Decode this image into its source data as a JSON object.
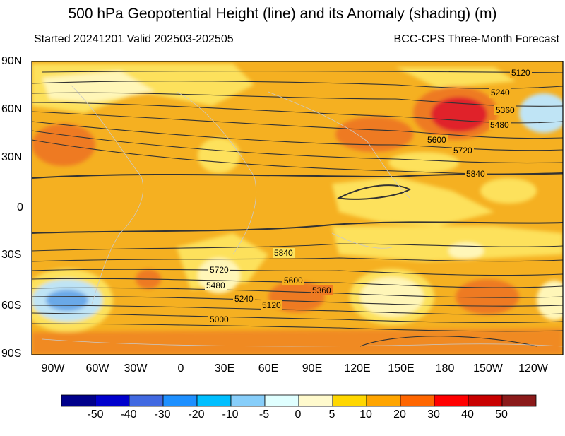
{
  "title": "500 hPa Geopotential Height (line) and its Anomaly (shading) (m)",
  "subtitle_left": "Started 20241201  Valid 202503-202505",
  "subtitle_right": "BCC-CPS Three-Month Forecast",
  "lat_labels": [
    "90N",
    "60N",
    "30N",
    "0",
    "30S",
    "60S",
    "90S"
  ],
  "lon_labels": [
    "90W",
    "60W",
    "30W",
    "0",
    "30E",
    "60E",
    "90E",
    "120E",
    "150E",
    "180",
    "150W",
    "120W"
  ],
  "contour_labels": [
    "5120",
    "5240",
    "5360",
    "5480",
    "5600",
    "5720",
    "5840",
    "5840",
    "5720",
    "5480",
    "5600",
    "5360",
    "5240",
    "5120",
    "5000"
  ],
  "colorbar": {
    "labels": [
      "-50",
      "-40",
      "-30",
      "-20",
      "-10",
      "-5",
      "0",
      "5",
      "10",
      "20",
      "30",
      "40",
      "50"
    ],
    "colors": [
      "#00008b",
      "#0000cd",
      "#4169e1",
      "#1e90ff",
      "#00bfff",
      "#87cefa",
      "#e0ffff",
      "#fffacd",
      "#ffd700",
      "#ffa500",
      "#ff6600",
      "#ff0000",
      "#c80000",
      "#8b1a1a"
    ]
  },
  "colors": {
    "base": "#f5b021",
    "deep_orange": "#ee7a22",
    "red": "#e0202a",
    "yellow": "#fde15c",
    "pale_yellow": "#fff6b8",
    "light_blue": "#bfe4f5",
    "blue": "#6aa9e8",
    "contour": "#333333"
  }
}
